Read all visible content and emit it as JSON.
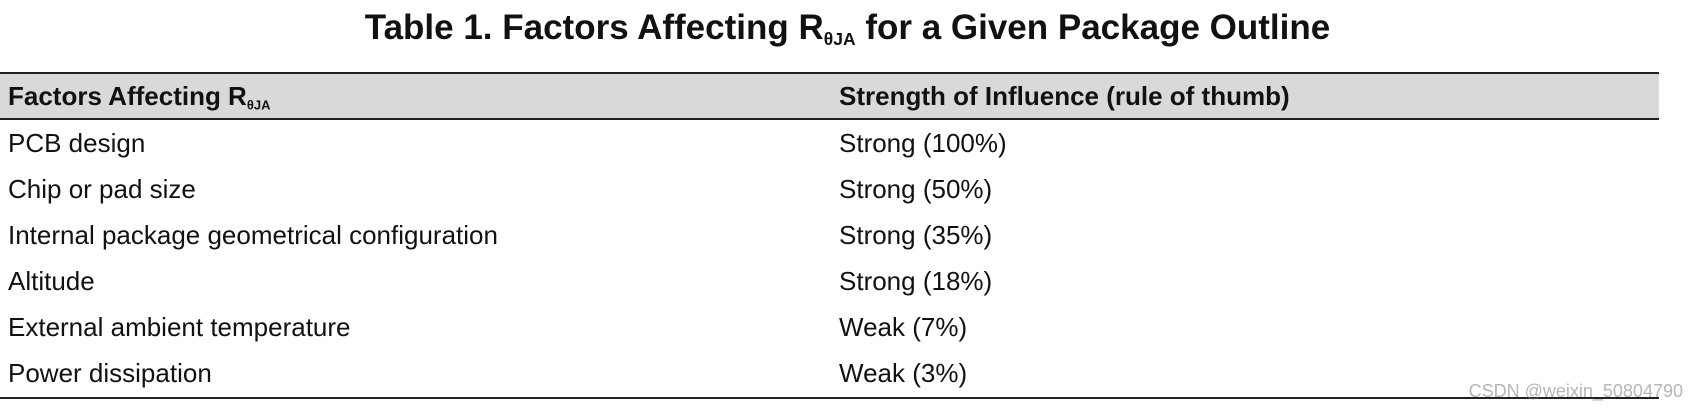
{
  "title": {
    "prefix": "Table 1. Factors Affecting R",
    "subscript": "θJA",
    "suffix": " for a Given Package Outline"
  },
  "table": {
    "headers": {
      "factor_prefix": "Factors Affecting R",
      "factor_subscript": "θJA",
      "strength": "Strength of Influence (rule of thumb)"
    },
    "rows": [
      {
        "factor": "PCB design",
        "strength": "Strong (100%)"
      },
      {
        "factor": "Chip or pad size",
        "strength": "Strong (50%)"
      },
      {
        "factor": "Internal package geometrical configuration",
        "strength": "Strong (35%)"
      },
      {
        "factor": "Altitude",
        "strength": "Strong (18%)"
      },
      {
        "factor": "External ambient temperature",
        "strength": "Weak (7%)"
      },
      {
        "factor": "Power dissipation",
        "strength": "Weak (3%)"
      }
    ],
    "header_background": "#d9d9d9"
  },
  "watermark": "CSDN @weixin_50804790"
}
